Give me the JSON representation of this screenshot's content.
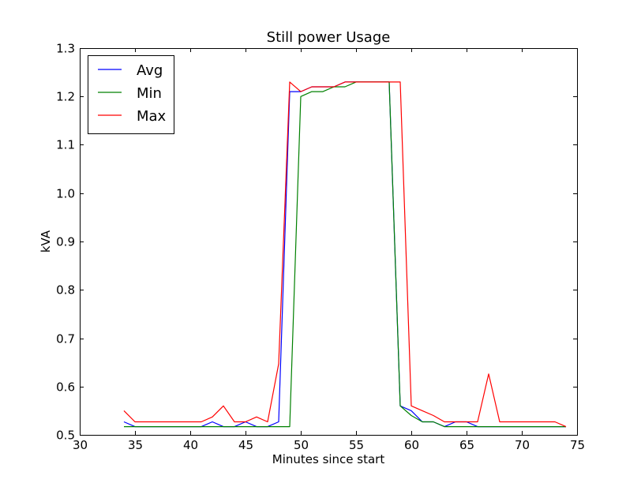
{
  "chart_data": {
    "type": "line",
    "title": "Still power Usage",
    "xlabel": "Minutes since start",
    "ylabel": "kVA",
    "xlim": [
      30,
      75
    ],
    "ylim": [
      0.5,
      1.3
    ],
    "xticks": [
      "30",
      "35",
      "40",
      "45",
      "50",
      "55",
      "60",
      "65",
      "70",
      "75"
    ],
    "yticks": [
      "0.5",
      "0.6",
      "0.7",
      "0.8",
      "0.9",
      "1.0",
      "1.1",
      "1.2",
      "1.3"
    ],
    "grid": false,
    "legend_position": "top-left",
    "x": [
      34,
      35,
      36,
      37,
      38,
      39,
      40,
      41,
      42,
      43,
      44,
      45,
      46,
      47,
      48,
      49,
      50,
      51,
      52,
      53,
      54,
      55,
      56,
      57,
      58,
      59,
      60,
      61,
      62,
      63,
      64,
      65,
      66,
      67,
      68,
      69,
      70,
      71,
      72,
      73,
      74
    ],
    "series": [
      {
        "name": "Avg",
        "color": "#0000ff",
        "values": [
          0.527,
          0.517,
          0.517,
          0.517,
          0.517,
          0.517,
          0.517,
          0.517,
          0.527,
          0.517,
          0.517,
          0.527,
          0.517,
          0.517,
          0.527,
          1.21,
          1.21,
          1.22,
          1.22,
          1.22,
          1.23,
          1.23,
          1.23,
          1.23,
          1.23,
          0.56,
          0.55,
          0.527,
          0.527,
          0.517,
          0.527,
          0.527,
          0.517,
          0.517,
          0.517,
          0.517,
          0.517,
          0.517,
          0.517,
          0.517,
          0.517
        ]
      },
      {
        "name": "Min",
        "color": "#008000",
        "values": [
          0.517,
          0.517,
          0.517,
          0.517,
          0.517,
          0.517,
          0.517,
          0.517,
          0.517,
          0.517,
          0.517,
          0.517,
          0.517,
          0.517,
          0.517,
          0.517,
          1.2,
          1.21,
          1.21,
          1.22,
          1.22,
          1.23,
          1.23,
          1.23,
          1.23,
          0.56,
          0.54,
          0.527,
          0.527,
          0.517,
          0.517,
          0.517,
          0.517,
          0.517,
          0.517,
          0.517,
          0.517,
          0.517,
          0.517,
          0.517,
          0.517
        ]
      },
      {
        "name": "Max",
        "color": "#ff0000",
        "values": [
          0.55,
          0.527,
          0.527,
          0.527,
          0.527,
          0.527,
          0.527,
          0.527,
          0.537,
          0.56,
          0.527,
          0.527,
          0.537,
          0.527,
          0.647,
          1.23,
          1.21,
          1.22,
          1.22,
          1.22,
          1.23,
          1.23,
          1.23,
          1.23,
          1.23,
          1.23,
          0.56,
          0.55,
          0.54,
          0.527,
          0.527,
          0.527,
          0.527,
          0.626,
          0.527,
          0.527,
          0.527,
          0.527,
          0.527,
          0.527,
          0.517
        ]
      }
    ]
  }
}
